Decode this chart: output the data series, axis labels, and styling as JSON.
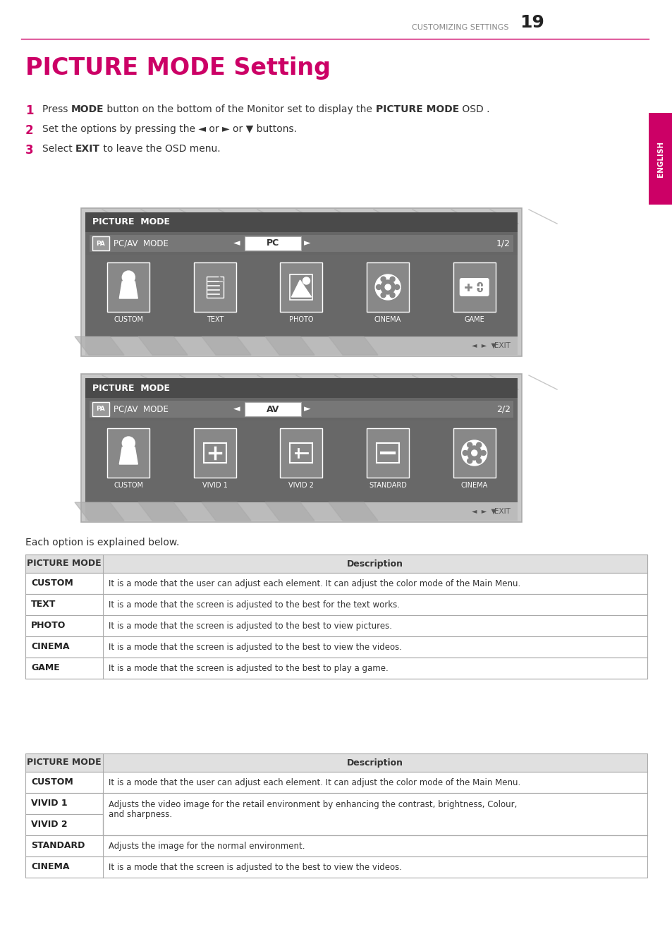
{
  "page_title": "PICTURE MODE Setting",
  "page_title_color": "#cc0066",
  "header_text": "CUSTOMIZING SETTINGS",
  "header_number": "19",
  "header_color": "#999999",
  "side_tab_color": "#cc0066",
  "side_tab_text": "ENGLISH",
  "body_color": "#ffffff",
  "step2": "Set the options by pressing the ◄ or ► or ▼ buttons.",
  "caption": "Each option is explained below.",
  "osd1_title": "PICTURE  MODE",
  "osd1_mode_label": "PC/AV  MODE",
  "osd1_center": "PC",
  "osd1_page": "1/2",
  "osd1_icons": [
    "CUSTOM",
    "TEXT",
    "PHOTO",
    "CINEMA",
    "GAME"
  ],
  "osd2_title": "PICTURE  MODE",
  "osd2_mode_label": "PC/AV  MODE",
  "osd2_center": "AV",
  "osd2_page": "2/2",
  "osd2_icons": [
    "CUSTOM",
    "VIVID 1",
    "VIVID 2",
    "STANDARD",
    "CINEMA"
  ],
  "table1_header": [
    "PICTURE MODE",
    "Description"
  ],
  "table1_rows": [
    [
      "CUSTOM",
      "It is a mode that the user can adjust each element. It can adjust the color mode of the Main Menu."
    ],
    [
      "TEXT",
      "It is a mode that the screen is adjusted to the best for the text works."
    ],
    [
      "PHOTO",
      "It is a mode that the screen is adjusted to the best to view pictures."
    ],
    [
      "CINEMA",
      "It is a mode that the screen is adjusted to the best to view the videos."
    ],
    [
      "GAME",
      "It is a mode that the screen is adjusted to the best to play a game."
    ]
  ],
  "table2_header": [
    "PICTURE MODE",
    "Description"
  ],
  "table2_rows": [
    [
      "CUSTOM",
      "It is a mode that the user can adjust each element. It can adjust the color mode of the Main Menu."
    ],
    [
      "VIVID 1",
      "Adjusts the video image for the retail environment by enhancing the contrast, brightness, Colour,\nand sharpness."
    ],
    [
      "VIVID 2",
      ""
    ],
    [
      "STANDARD",
      "Adjusts the image for the normal environment."
    ],
    [
      "CINEMA",
      "It is a mode that the screen is adjusted to the best to view the videos."
    ]
  ],
  "table_header_bg": "#e0e0e0",
  "table_border": "#aaaaaa"
}
